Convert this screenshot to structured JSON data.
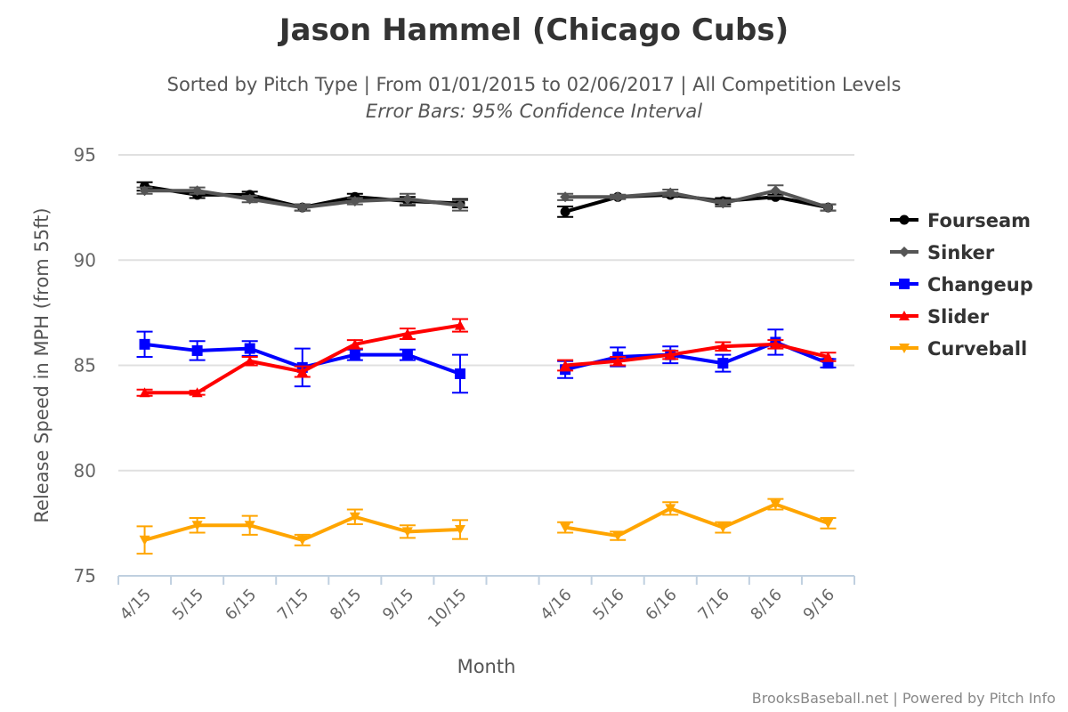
{
  "title": "Jason Hammel (Chicago Cubs)",
  "subtitle": "Sorted by Pitch Type | From 01/01/2015 to 02/06/2017 | All Competition Levels",
  "subtitle2": "Error Bars: 95% Confidence Interval",
  "credit": "BrooksBaseball.net | Powered by Pitch Info",
  "chart_data": {
    "type": "line",
    "xlabel": "Month",
    "ylabel": "Release Speed in MPH (from 55ft)",
    "ylim": [
      75,
      95
    ],
    "yticks": [
      75,
      80,
      85,
      90,
      95
    ],
    "grid": true,
    "legend": "right",
    "categories": [
      "4/15",
      "5/15",
      "6/15",
      "7/15",
      "8/15",
      "9/15",
      "10/15",
      "",
      "4/16",
      "5/16",
      "6/16",
      "7/16",
      "8/16",
      "9/16"
    ],
    "series": [
      {
        "name": "Fourseam",
        "color": "#000000",
        "marker": "circle",
        "values": [
          93.5,
          93.1,
          93.1,
          92.5,
          93.0,
          92.8,
          92.7,
          null,
          92.3,
          93.0,
          93.1,
          92.8,
          93.0,
          92.5
        ],
        "err": [
          0.2,
          0.15,
          0.15,
          0.15,
          0.15,
          0.2,
          0.2,
          null,
          0.25,
          0.1,
          0.1,
          0.15,
          0.1,
          0.15
        ]
      },
      {
        "name": "Sinker",
        "color": "#555555",
        "marker": "diamond",
        "values": [
          93.3,
          93.3,
          92.9,
          92.5,
          92.8,
          92.9,
          92.6,
          null,
          93.0,
          93.0,
          93.2,
          92.7,
          93.3,
          92.5
        ],
        "err": [
          0.15,
          0.15,
          0.15,
          0.15,
          0.15,
          0.25,
          0.25,
          null,
          0.15,
          0.1,
          0.15,
          0.15,
          0.25,
          0.15
        ]
      },
      {
        "name": "Changeup",
        "color": "#0000ff",
        "marker": "square",
        "values": [
          86.0,
          85.7,
          85.8,
          84.9,
          85.5,
          85.5,
          84.6,
          null,
          84.8,
          85.4,
          85.5,
          85.1,
          86.1,
          85.1
        ],
        "err": [
          0.6,
          0.45,
          0.35,
          0.9,
          0.25,
          0.25,
          0.9,
          null,
          0.4,
          0.45,
          0.4,
          0.4,
          0.6,
          0.2
        ]
      },
      {
        "name": "Slider",
        "color": "#ff0000",
        "marker": "triangle",
        "values": [
          83.7,
          83.7,
          85.2,
          84.7,
          86.0,
          86.5,
          86.9,
          null,
          85.0,
          85.2,
          85.5,
          85.9,
          86.0,
          85.4
        ],
        "err": [
          0.15,
          0.1,
          0.2,
          0.25,
          0.2,
          0.25,
          0.3,
          null,
          0.25,
          0.2,
          0.2,
          0.2,
          0.2,
          0.2
        ]
      },
      {
        "name": "Curveball",
        "color": "#ffa500",
        "marker": "triangle-down",
        "values": [
          76.7,
          77.4,
          77.4,
          76.7,
          77.8,
          77.1,
          77.2,
          null,
          77.3,
          76.9,
          78.2,
          77.3,
          78.4,
          77.5
        ],
        "err": [
          0.65,
          0.35,
          0.45,
          0.25,
          0.35,
          0.3,
          0.45,
          null,
          0.25,
          0.2,
          0.3,
          0.25,
          0.25,
          0.25
        ]
      }
    ]
  }
}
